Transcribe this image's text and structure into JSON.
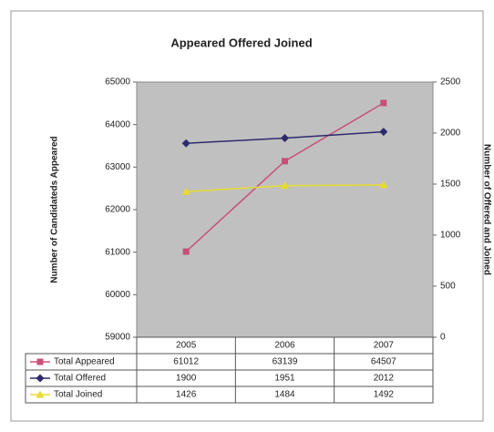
{
  "chart_data": {
    "type": "line",
    "title": "Appeared Offered Joined",
    "ylabel": "Number of Candidateds Appeared",
    "y2label": "Number of Offered and Joined",
    "categories": [
      "2005",
      "2006",
      "2007"
    ],
    "ylim": [
      59000,
      65000
    ],
    "yticks": [
      59000,
      60000,
      61000,
      62000,
      63000,
      64000,
      65000
    ],
    "y2lim": [
      0,
      2500
    ],
    "y2ticks": [
      0,
      500,
      1000,
      1500,
      2000,
      2500
    ],
    "series": [
      {
        "name": "Total Appeared",
        "color": "#c8507a",
        "marker": "square",
        "axis": "y",
        "values": [
          61012,
          63139,
          64507
        ]
      },
      {
        "name": "Total Offered",
        "color": "#2e2a6b",
        "marker": "diamond",
        "axis": "y2",
        "values": [
          1900,
          1951,
          2012
        ]
      },
      {
        "name": "Total Joined",
        "color": "#e6dc2e",
        "marker": "triangle",
        "axis": "y2",
        "values": [
          1426,
          1484,
          1492
        ]
      }
    ],
    "grid": false,
    "plot_background": "#c0c0c0"
  }
}
